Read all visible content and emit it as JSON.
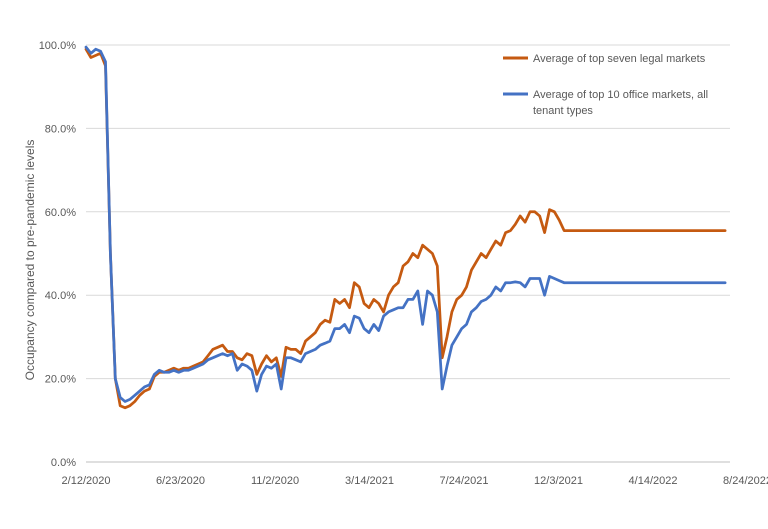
{
  "chart_data": {
    "type": "line",
    "title": "",
    "xlabel": "",
    "ylabel": "Occupancy compared to pre-pandemic levels",
    "ylim": [
      0,
      1
    ],
    "yticks": [
      "0.0%",
      "20.0%",
      "40.0%",
      "60.0%",
      "80.0%",
      "100.0%"
    ],
    "xticks": [
      "2/12/2020",
      "6/23/2020",
      "11/2/2020",
      "3/14/2021",
      "7/24/2021",
      "12/3/2021",
      "4/14/2022",
      "8/24/2022"
    ],
    "grid": true,
    "legend_position": "top-right",
    "x_dates": [
      "2020-02-12",
      "2020-02-19",
      "2020-02-26",
      "2020-03-04",
      "2020-03-11",
      "2020-03-18",
      "2020-03-25",
      "2020-04-01",
      "2020-04-08",
      "2020-04-15",
      "2020-04-22",
      "2020-04-29",
      "2020-05-06",
      "2020-05-13",
      "2020-05-20",
      "2020-05-27",
      "2020-06-03",
      "2020-06-10",
      "2020-06-17",
      "2020-06-24",
      "2020-07-01",
      "2020-07-08",
      "2020-07-15",
      "2020-07-22",
      "2020-07-29",
      "2020-08-05",
      "2020-08-12",
      "2020-08-19",
      "2020-08-26",
      "2020-09-02",
      "2020-09-09",
      "2020-09-16",
      "2020-09-23",
      "2020-09-30",
      "2020-10-07",
      "2020-10-14",
      "2020-10-21",
      "2020-10-28",
      "2020-11-04",
      "2020-11-11",
      "2020-11-18",
      "2020-11-25",
      "2020-12-02",
      "2020-12-09",
      "2020-12-16",
      "2020-12-23",
      "2020-12-30",
      "2021-01-06",
      "2021-01-13",
      "2021-01-20",
      "2021-01-27",
      "2021-02-03",
      "2021-02-10",
      "2021-02-17",
      "2021-02-24",
      "2021-03-03",
      "2021-03-10",
      "2021-03-17",
      "2021-03-24",
      "2021-03-31",
      "2021-04-07",
      "2021-04-14",
      "2021-04-21",
      "2021-04-28",
      "2021-05-05",
      "2021-05-12",
      "2021-05-19",
      "2021-05-26",
      "2021-06-02",
      "2021-06-09",
      "2021-06-16",
      "2021-06-23",
      "2021-06-30",
      "2021-07-07",
      "2021-07-14",
      "2021-07-21",
      "2021-07-28",
      "2021-08-04",
      "2021-08-11",
      "2021-08-18",
      "2021-08-25",
      "2021-09-01",
      "2021-09-08",
      "2021-09-15",
      "2021-09-22",
      "2021-09-29",
      "2021-10-06",
      "2021-10-13",
      "2021-10-20",
      "2021-10-27",
      "2021-11-03",
      "2021-11-10",
      "2021-11-17",
      "2021-11-24",
      "2021-12-01",
      "2021-12-08",
      "2021-12-15",
      "2021-12-22",
      "2021-12-29",
      "2022-01-05",
      "2022-01-12",
      "2022-01-19",
      "2022-01-26",
      "2022-02-02",
      "2022-02-09",
      "2022-02-16",
      "2022-02-23",
      "2022-03-02",
      "2022-03-09",
      "2022-03-16",
      "2022-03-23",
      "2022-03-30",
      "2022-04-06",
      "2022-04-13",
      "2022-04-20",
      "2022-04-27",
      "2022-05-04",
      "2022-05-11",
      "2022-05-18",
      "2022-05-25",
      "2022-06-01",
      "2022-06-08",
      "2022-06-15",
      "2022-06-22",
      "2022-06-29",
      "2022-07-06",
      "2022-07-13",
      "2022-07-20",
      "2022-07-27",
      "2022-08-03",
      "2022-08-10",
      "2022-08-17",
      "2022-08-24"
    ],
    "series": [
      {
        "name": "Average of top seven legal markets",
        "color": "#c55a11",
        "values": [
          0.99,
          0.97,
          0.975,
          0.98,
          0.95,
          0.5,
          0.2,
          0.135,
          0.13,
          0.135,
          0.145,
          0.16,
          0.17,
          0.175,
          0.205,
          0.215,
          0.215,
          0.22,
          0.225,
          0.22,
          0.225,
          0.225,
          0.23,
          0.235,
          0.24,
          0.255,
          0.27,
          0.275,
          0.28,
          0.265,
          0.265,
          0.25,
          0.245,
          0.26,
          0.255,
          0.21,
          0.235,
          0.255,
          0.24,
          0.25,
          0.205,
          0.275,
          0.27,
          0.27,
          0.26,
          0.29,
          0.3,
          0.31,
          0.33,
          0.34,
          0.335,
          0.39,
          0.38,
          0.39,
          0.37,
          0.43,
          0.42,
          0.38,
          0.37,
          0.39,
          0.38,
          0.36,
          0.4,
          0.42,
          0.43,
          0.47,
          0.48,
          0.5,
          0.49,
          0.52,
          0.51,
          0.5,
          0.47,
          0.25,
          0.3,
          0.36,
          0.39,
          0.4,
          0.42,
          0.46,
          0.48,
          0.5,
          0.49,
          0.51,
          0.53,
          0.52,
          0.55,
          0.555,
          0.57,
          0.59,
          0.575,
          0.6,
          0.6,
          0.59,
          0.55,
          0.605,
          0.6,
          0.58,
          0.555,
          0.555,
          0.555,
          0.555,
          0.555,
          0.555,
          0.555,
          0.555,
          0.555,
          0.555,
          0.555,
          0.555,
          0.555,
          0.555,
          0.555,
          0.555,
          0.555,
          0.555,
          0.555,
          0.555,
          0.555,
          0.555,
          0.555,
          0.555,
          0.555,
          0.555,
          0.555,
          0.555,
          0.555,
          0.555,
          0.555,
          0.555,
          0.555,
          0.555
        ]
      },
      {
        "name": "Average of top 10 office markets, all tenant types",
        "color": "#4472c4",
        "values": [
          0.995,
          0.98,
          0.99,
          0.985,
          0.96,
          0.5,
          0.2,
          0.155,
          0.145,
          0.15,
          0.16,
          0.17,
          0.18,
          0.185,
          0.21,
          0.22,
          0.215,
          0.215,
          0.22,
          0.215,
          0.22,
          0.22,
          0.225,
          0.23,
          0.235,
          0.245,
          0.25,
          0.255,
          0.26,
          0.255,
          0.26,
          0.22,
          0.235,
          0.23,
          0.22,
          0.17,
          0.21,
          0.23,
          0.225,
          0.235,
          0.175,
          0.25,
          0.25,
          0.245,
          0.24,
          0.26,
          0.265,
          0.27,
          0.28,
          0.285,
          0.29,
          0.32,
          0.32,
          0.33,
          0.31,
          0.35,
          0.345,
          0.32,
          0.31,
          0.33,
          0.315,
          0.35,
          0.36,
          0.365,
          0.37,
          0.37,
          0.39,
          0.39,
          0.41,
          0.33,
          0.41,
          0.4,
          0.36,
          0.175,
          0.23,
          0.28,
          0.3,
          0.32,
          0.33,
          0.36,
          0.37,
          0.385,
          0.39,
          0.4,
          0.42,
          0.41,
          0.43,
          0.43,
          0.432,
          0.43,
          0.42,
          0.44,
          0.44,
          0.44,
          0.4,
          0.445,
          0.44,
          0.435,
          0.43,
          0.43,
          0.43,
          0.43,
          0.43,
          0.43,
          0.43,
          0.43,
          0.43,
          0.43,
          0.43,
          0.43,
          0.43,
          0.43,
          0.43,
          0.43,
          0.43,
          0.43,
          0.43,
          0.43,
          0.43,
          0.43,
          0.43,
          0.43,
          0.43,
          0.43,
          0.43,
          0.43,
          0.43,
          0.43,
          0.43,
          0.43,
          0.43,
          0.43
        ]
      }
    ]
  }
}
